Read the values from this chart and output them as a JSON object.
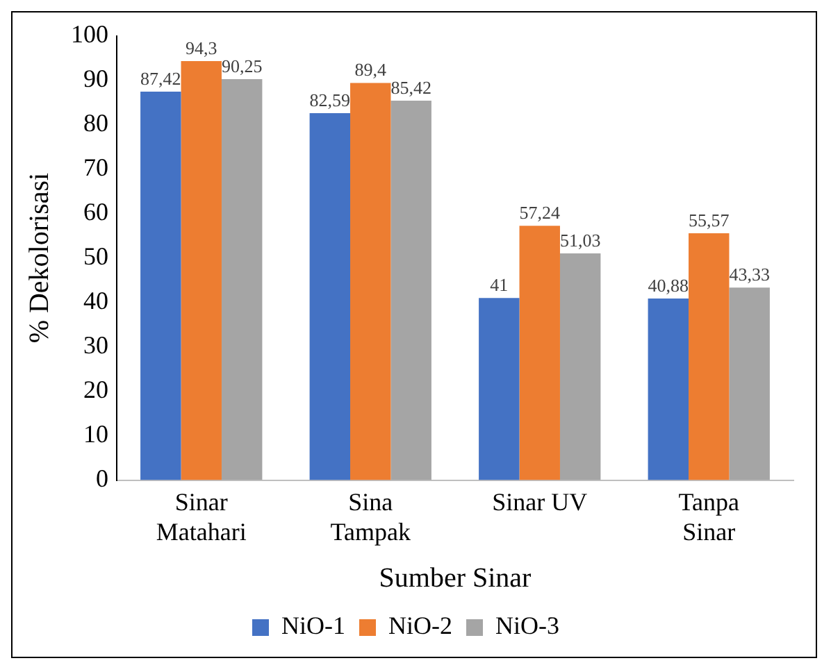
{
  "chart_data": {
    "type": "bar",
    "xlabel": "Sumber Sinar",
    "ylabel": "% Dekolorisasi",
    "categories": [
      "Sinar Matahari",
      "Sina Tampak",
      "Sinar UV",
      "Tanpa Sinar"
    ],
    "series": [
      {
        "name": "NiO-1",
        "color": "#4472c4",
        "values": [
          87.42,
          82.59,
          41,
          40.88
        ],
        "value_labels": [
          "87,42",
          "82,59",
          "41",
          "40,88"
        ]
      },
      {
        "name": "NiO-2",
        "color": "#ed7d31",
        "values": [
          94.3,
          89.4,
          57.24,
          55.57
        ],
        "value_labels": [
          "94,3",
          "89,4",
          "57,24",
          "55,57"
        ]
      },
      {
        "name": "NiO-3",
        "color": "#a5a5a5",
        "values": [
          90.25,
          85.42,
          51.03,
          43.33
        ],
        "value_labels": [
          "90,25",
          "85,42",
          "51,03",
          "43,33"
        ]
      }
    ],
    "ylim": [
      0,
      100
    ],
    "yticks": [
      0,
      10,
      20,
      30,
      40,
      50,
      60,
      70,
      80,
      90,
      100
    ],
    "grid": false,
    "legend": "bottom"
  }
}
